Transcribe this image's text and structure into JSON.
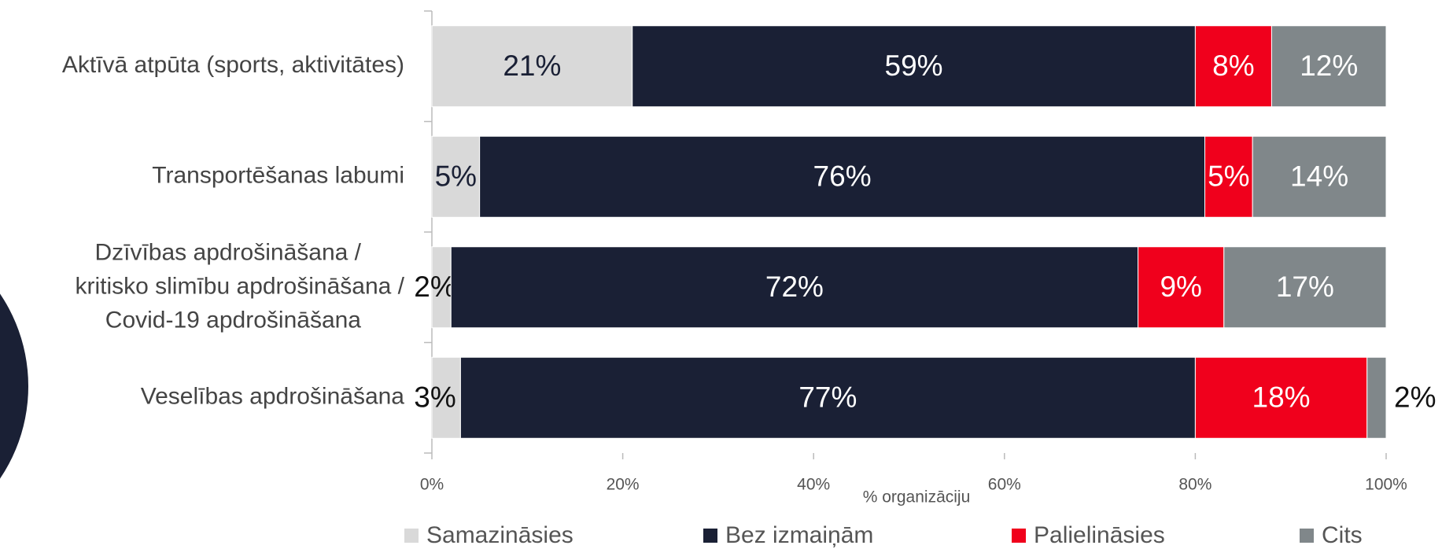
{
  "chart_data": {
    "type": "stacked_barh",
    "categories": [
      "Aktīvā atpūta (sports, aktivitātes)",
      "Transportēšanas labumi",
      "Dzīvības apdrošināšana / kritisko slimību apdrošināšana / Covid-19 apdrošināšana",
      "Veselības apdrošināšana"
    ],
    "series": [
      {
        "name": "Samazināsies",
        "color": "#d9d9d9",
        "values": [
          21,
          5,
          2,
          3
        ],
        "value_labels": [
          "21%",
          "5%",
          "2%",
          "3%"
        ]
      },
      {
        "name": "Bez izmaiņām",
        "color": "#1a2035",
        "values": [
          59,
          76,
          72,
          77
        ],
        "value_labels": [
          "59%",
          "76%",
          "72%",
          "77%"
        ]
      },
      {
        "name": "Palielināsies",
        "color": "#f0001c",
        "values": [
          8,
          5,
          9,
          18
        ],
        "value_labels": [
          "8%",
          "5%",
          "9%",
          "18%"
        ]
      },
      {
        "name": "Cits",
        "color": "#80878a",
        "values": [
          12,
          14,
          17,
          2
        ],
        "value_labels": [
          "12%",
          "14%",
          "17%",
          "2%"
        ]
      }
    ],
    "xlabel": "% organizāciju",
    "xlim": [
      0,
      100
    ],
    "xticks": [
      {
        "value": 0,
        "label": "0%"
      },
      {
        "value": 20,
        "label": "20%"
      },
      {
        "value": 40,
        "label": "40%"
      },
      {
        "value": 60,
        "label": "60%"
      },
      {
        "value": 80,
        "label": "80%"
      },
      {
        "value": 100,
        "label": "100%"
      }
    ],
    "legend": "bottom"
  }
}
